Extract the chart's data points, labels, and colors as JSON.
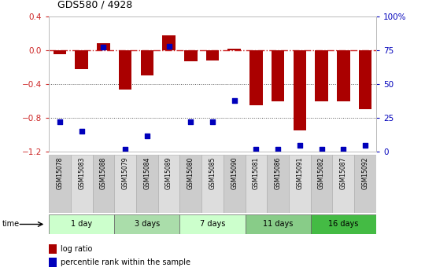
{
  "title": "GDS580 / 4928",
  "samples": [
    "GSM15078",
    "GSM15083",
    "GSM15088",
    "GSM15079",
    "GSM15084",
    "GSM15089",
    "GSM15080",
    "GSM15085",
    "GSM15090",
    "GSM15081",
    "GSM15086",
    "GSM15091",
    "GSM15082",
    "GSM15087",
    "GSM15092"
  ],
  "log_ratio": [
    -0.05,
    -0.22,
    0.08,
    -0.47,
    -0.3,
    0.17,
    -0.13,
    -0.12,
    0.02,
    -0.65,
    -0.6,
    -0.95,
    -0.6,
    -0.6,
    -0.7
  ],
  "percentile": [
    22,
    15,
    77,
    2,
    12,
    78,
    22,
    22,
    38,
    2,
    2,
    5,
    2,
    2,
    5
  ],
  "bar_color": "#aa0000",
  "dot_color": "#0000bb",
  "hline_color": "#cc2222",
  "dotted_color": "#555555",
  "ylim_left": [
    -1.2,
    0.4
  ],
  "ylim_right": [
    0,
    100
  ],
  "yticks_left": [
    -1.2,
    -0.8,
    -0.4,
    0.0,
    0.4
  ],
  "yticks_right": [
    0,
    25,
    50,
    75,
    100
  ],
  "ylabel_right_labels": [
    "0",
    "25",
    "50",
    "75",
    "100%"
  ],
  "dotted_lines": [
    -0.4,
    -0.8
  ],
  "fig_width": 5.4,
  "fig_height": 3.45,
  "bg_color": "#ffffff",
  "group_row_colors": [
    "#ccffcc",
    "#aaddaa",
    "#ccffcc",
    "#88cc88",
    "#44bb44"
  ],
  "sample_col_colors": [
    "#cccccc",
    "#dddddd"
  ],
  "time_label": "time",
  "legend_items": [
    "log ratio",
    "percentile rank within the sample"
  ],
  "group_defs": [
    [
      0,
      2,
      "1 day",
      "#ccffcc"
    ],
    [
      3,
      5,
      "3 days",
      "#aaddaa"
    ],
    [
      6,
      8,
      "7 days",
      "#ccffcc"
    ],
    [
      9,
      11,
      "11 days",
      "#88cc88"
    ],
    [
      12,
      14,
      "16 days",
      "#44bb44"
    ]
  ]
}
